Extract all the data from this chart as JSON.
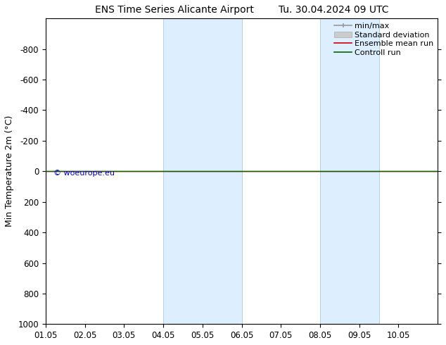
{
  "title_left": "ENS Time Series Alicante Airport",
  "title_right": "Tu. 30.04.2024 09 UTC",
  "ylabel": "Min Temperature 2m (°C)",
  "ylim_top": -1000,
  "ylim_bottom": 1000,
  "yticks": [
    -800,
    -600,
    -400,
    -200,
    0,
    200,
    400,
    600,
    800,
    1000
  ],
  "xlim_start": 0.0,
  "xlim_end": 10.0,
  "xtick_labels": [
    "01.05",
    "02.05",
    "03.05",
    "04.05",
    "05.05",
    "06.05",
    "07.05",
    "08.05",
    "09.05",
    "10.05"
  ],
  "xtick_positions": [
    0,
    1,
    2,
    3,
    4,
    5,
    6,
    7,
    8,
    9
  ],
  "shaded_bands": [
    {
      "xmin": 3.0,
      "xmax": 5.0
    },
    {
      "xmin": 7.0,
      "xmax": 8.5
    }
  ],
  "band_color": "#ddeeff",
  "band_edge_color": "#aaccdd",
  "control_run_color": "#006600",
  "ensemble_mean_color": "#cc0000",
  "minmax_color": "#999999",
  "std_dev_color": "#cccccc",
  "watermark": "© woeurope.eu",
  "watermark_color": "#0000bb",
  "background_color": "#ffffff",
  "plot_bg_color": "#ffffff",
  "legend_entries": [
    "min/max",
    "Standard deviation",
    "Ensemble mean run",
    "Controll run"
  ],
  "legend_colors": [
    "#999999",
    "#cccccc",
    "#cc0000",
    "#006600"
  ],
  "title_fontsize": 10,
  "axis_label_fontsize": 9,
  "tick_fontsize": 8.5,
  "legend_fontsize": 8
}
